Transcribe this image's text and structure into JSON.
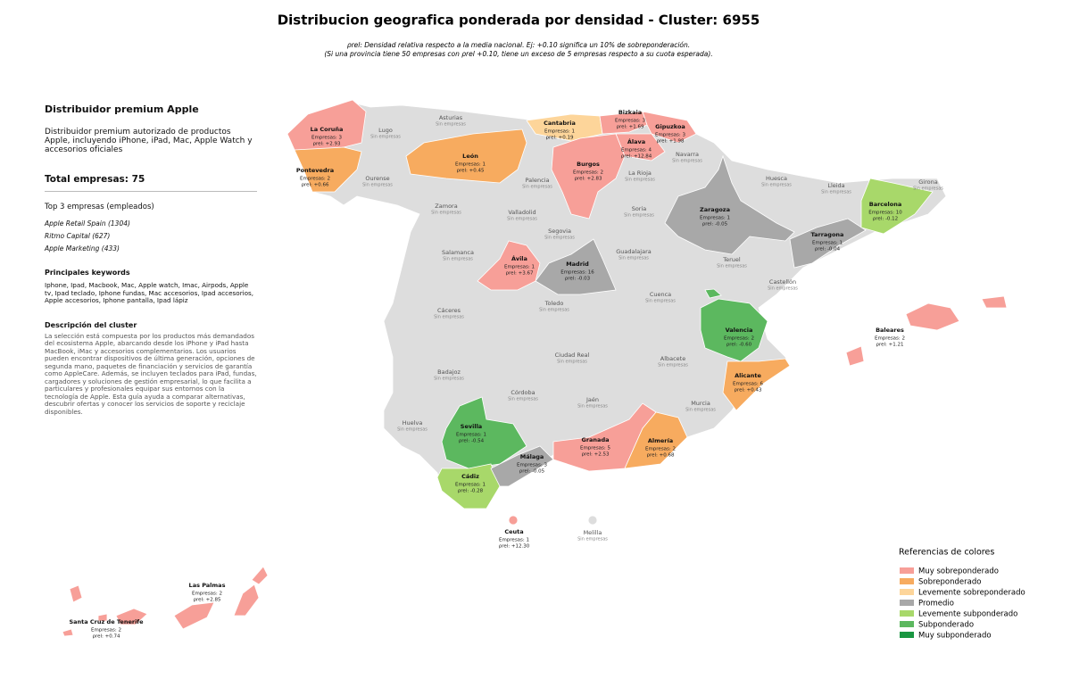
{
  "title": "Distribucion geografica ponderada por densidad - Cluster: 6955",
  "subtitle": [
    "ρrel: Densidad relativa respecto a la media nacional. Ej: +0.10 significa un 10% de sobreponderación.",
    "(Si una provincia tiene 50 empresas con ρrel +0.10, tiene un exceso de 5 empresas respecto a su cuota esperada)."
  ],
  "sidebar": {
    "cluster_name": "Distribuidor premium Apple",
    "cluster_summary": "Distribuidor premium autorizado de productos Apple, incluyendo iPhone, iPad, Mac, Apple Watch y accesorios oficiales",
    "total": "Total empresas: 75",
    "top_heading": "Top 3 empresas (empleados)",
    "top": [
      "Apple Retail Spain (1304)",
      "Ritmo Capital (627)",
      "Apple Marketing (433)"
    ],
    "keywords_heading": "Principales keywords",
    "keywords": "Iphone, Ipad, Macbook, Mac, Apple watch, Imac, Airpods, Apple tv, Ipad teclado, Iphone fundas, Mac accesorios, Ipad accesorios, Apple accesorios, Iphone pantalla, Ipad lápiz",
    "description_heading": "Descripción del cluster",
    "description": "La selección está compuesta por los productos más demandados del ecosistema Apple, abarcando desde los iPhone y iPad hasta MacBook, iMac y accesorios complementarios. Los usuarios pueden encontrar dispositivos de última generación, opciones de segunda mano, paquetes de financiación y servicios de garantía como AppleCare. Además, se incluyen teclados para iPad, fundas, cargadores y soluciones de gestión empresarial, lo que facilita a particulares y profesionales equipar sus entornos con la tecnología de Apple. Esta guía ayuda a comparar alternativas, descubrir ofertas y conocer los servicios de soporte y reciclaje disponibles."
  },
  "provinces": [
    {
      "name": "La Coruña",
      "count": "Empresas: 3",
      "rho": "ρrel: +2.93",
      "category": 0
    },
    {
      "name": "Pontevedra",
      "count": "Empresas: 2",
      "rho": "ρrel: +0.66",
      "category": 1
    },
    {
      "name": "Cantabria",
      "count": "Empresas: 1",
      "rho": "ρrel: +0.19",
      "category": 2
    },
    {
      "name": "Bizkaia",
      "count": "Empresas: 3",
      "rho": "ρrel: +1.69",
      "category": 0
    },
    {
      "name": "Gipuzkoa",
      "count": "Empresas: 3",
      "rho": "ρrel: +1.98",
      "category": 0
    },
    {
      "name": "Álava",
      "count": "Empresas: 4",
      "rho": "ρrel: +12.84",
      "category": 0
    },
    {
      "name": "León",
      "count": "Empresas: 1",
      "rho": "ρrel: +0.45",
      "category": 1
    },
    {
      "name": "Burgos",
      "count": "Empresas: 2",
      "rho": "ρrel: +2.83",
      "category": 0
    },
    {
      "name": "Zaragoza",
      "count": "Empresas: 1",
      "rho": "ρrel: -0.05",
      "category": 3
    },
    {
      "name": "Tarragona",
      "count": "Empresas: 1",
      "rho": "ρrel: -0.04",
      "category": 3
    },
    {
      "name": "Barcelona",
      "count": "Empresas: 10",
      "rho": "ρrel: -0.12",
      "category": 4
    },
    {
      "name": "Ávila",
      "count": "Empresas: 1",
      "rho": "ρrel: +3.67",
      "category": 0
    },
    {
      "name": "Madrid",
      "count": "Empresas: 16",
      "rho": "ρrel: -0.03",
      "category": 3
    },
    {
      "name": "Valencia",
      "count": "Empresas: 2",
      "rho": "ρrel: -0.60",
      "category": 5
    },
    {
      "name": "Alicante",
      "count": "Empresas: 6",
      "rho": "ρrel: +0.43",
      "category": 1
    },
    {
      "name": "Baleares",
      "count": "Empresas: 2",
      "rho": "ρrel: +1.21",
      "category": 0
    },
    {
      "name": "Sevilla",
      "count": "Empresas: 1",
      "rho": "ρrel: -0.54",
      "category": 5
    },
    {
      "name": "Cádiz",
      "count": "Empresas: 1",
      "rho": "ρrel: -0.28",
      "category": 4
    },
    {
      "name": "Málaga",
      "count": "Empresas: 3",
      "rho": "ρrel: -0.05",
      "category": 3
    },
    {
      "name": "Granada",
      "count": "Empresas: 5",
      "rho": "ρrel: +2.53",
      "category": 0
    },
    {
      "name": "Almería",
      "count": "Empresas: 2",
      "rho": "ρrel: +0.68",
      "category": 1
    },
    {
      "name": "Ceuta",
      "count": "Empresas: 1",
      "rho": "ρrel: +12.30",
      "category": 0
    },
    {
      "name": "Las Palmas",
      "count": "Empresas: 2",
      "rho": "ρrel: +2.85",
      "category": 0
    },
    {
      "name": "Santa Cruz de Tenerife",
      "count": "Empresas: 2",
      "rho": "ρrel: +0.74",
      "category": 0
    }
  ],
  "empty_provinces": [
    {
      "name": "Lugo",
      "status": "Sin empresas"
    },
    {
      "name": "Asturias",
      "status": "Sin empresas"
    },
    {
      "name": "Navarra",
      "status": "Sin empresas"
    },
    {
      "name": "La Rioja",
      "status": "Sin empresas"
    },
    {
      "name": "Ourense",
      "status": "Sin empresas"
    },
    {
      "name": "Palencia",
      "status": "Sin empresas"
    },
    {
      "name": "Huesca",
      "status": "Sin empresas"
    },
    {
      "name": "Lleida",
      "status": "Sin empresas"
    },
    {
      "name": "Girona",
      "status": "Sin empresas"
    },
    {
      "name": "Zamora",
      "status": "Sin empresas"
    },
    {
      "name": "Valladolid",
      "status": "Sin empresas"
    },
    {
      "name": "Soria",
      "status": "Sin empresas"
    },
    {
      "name": "Segovia",
      "status": "Sin empresas"
    },
    {
      "name": "Salamanca",
      "status": "Sin empresas"
    },
    {
      "name": "Guadalajara",
      "status": "Sin empresas"
    },
    {
      "name": "Teruel",
      "status": "Sin empresas"
    },
    {
      "name": "Castellón",
      "status": "Sin empresas"
    },
    {
      "name": "Cuenca",
      "status": "Sin empresas"
    },
    {
      "name": "Toledo",
      "status": "Sin empresas"
    },
    {
      "name": "Cáceres",
      "status": "Sin empresas"
    },
    {
      "name": "Ciudad Real",
      "status": "Sin empresas"
    },
    {
      "name": "Albacete",
      "status": "Sin empresas"
    },
    {
      "name": "Badajoz",
      "status": "Sin empresas"
    },
    {
      "name": "Córdoba",
      "status": "Sin empresas"
    },
    {
      "name": "Jaén",
      "status": "Sin empresas"
    },
    {
      "name": "Murcia",
      "status": "Sin empresas"
    },
    {
      "name": "Huelva",
      "status": "Sin empresas"
    },
    {
      "name": "Melilla",
      "status": "Sin empresas"
    }
  ],
  "legend": {
    "title": "Referencias de colores",
    "items": [
      {
        "name": "Muy sobreponderado",
        "color": "#f79f98"
      },
      {
        "name": "Sobreponderado",
        "color": "#f7ab5f"
      },
      {
        "name": "Levemente sobreponderado",
        "color": "#fdd59a"
      },
      {
        "name": "Promedio",
        "color": "#a8a8a8"
      },
      {
        "name": "Levemente subponderado",
        "color": "#a8d86a"
      },
      {
        "name": "Subponderado",
        "color": "#5cb85f"
      },
      {
        "name": "Muy subponderado",
        "color": "#1a9641"
      }
    ]
  }
}
